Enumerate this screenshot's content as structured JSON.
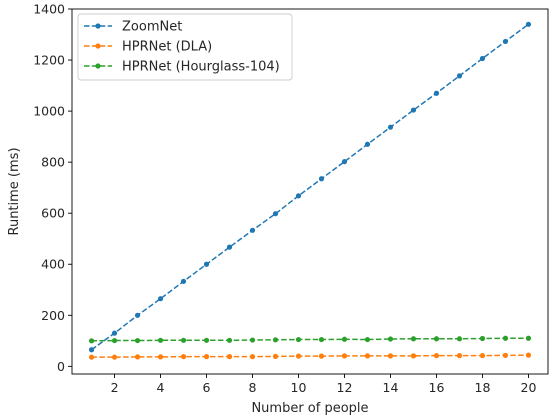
{
  "chart_data": {
    "type": "line",
    "title": "",
    "xlabel": "Number of people",
    "ylabel": "Runtime (ms)",
    "xlim": [
      0.15,
      20.85
    ],
    "ylim": [
      -30,
      1400
    ],
    "x_ticks": [
      2,
      4,
      6,
      8,
      10,
      12,
      14,
      16,
      18,
      20
    ],
    "y_ticks": [
      0,
      200,
      400,
      600,
      800,
      1000,
      1200,
      1400
    ],
    "grid": false,
    "legend_position": "top-left",
    "x": [
      1,
      2,
      3,
      4,
      5,
      6,
      7,
      8,
      9,
      10,
      11,
      12,
      13,
      14,
      15,
      16,
      17,
      18,
      19,
      20
    ],
    "series": [
      {
        "name": "ZoomNet",
        "color": "#1f77b4",
        "values": [
          65,
          130,
          200,
          265,
          333,
          400,
          467,
          533,
          598,
          668,
          735,
          802,
          870,
          937,
          1004,
          1070,
          1138,
          1206,
          1273,
          1340
        ]
      },
      {
        "name": "HPRNet (DLA)",
        "color": "#ff7f0e",
        "values": [
          36,
          36,
          37,
          37,
          38,
          38,
          38,
          38,
          39,
          40,
          40,
          41,
          41,
          41,
          41,
          42,
          42,
          42,
          43,
          44
        ]
      },
      {
        "name": "HPRNet (Hourglass-104)",
        "color": "#2ca02c",
        "values": [
          100,
          101,
          101,
          102,
          102,
          102,
          102,
          103,
          104,
          105,
          105,
          106,
          105,
          107,
          108,
          108,
          108,
          109,
          110,
          110
        ]
      }
    ]
  }
}
